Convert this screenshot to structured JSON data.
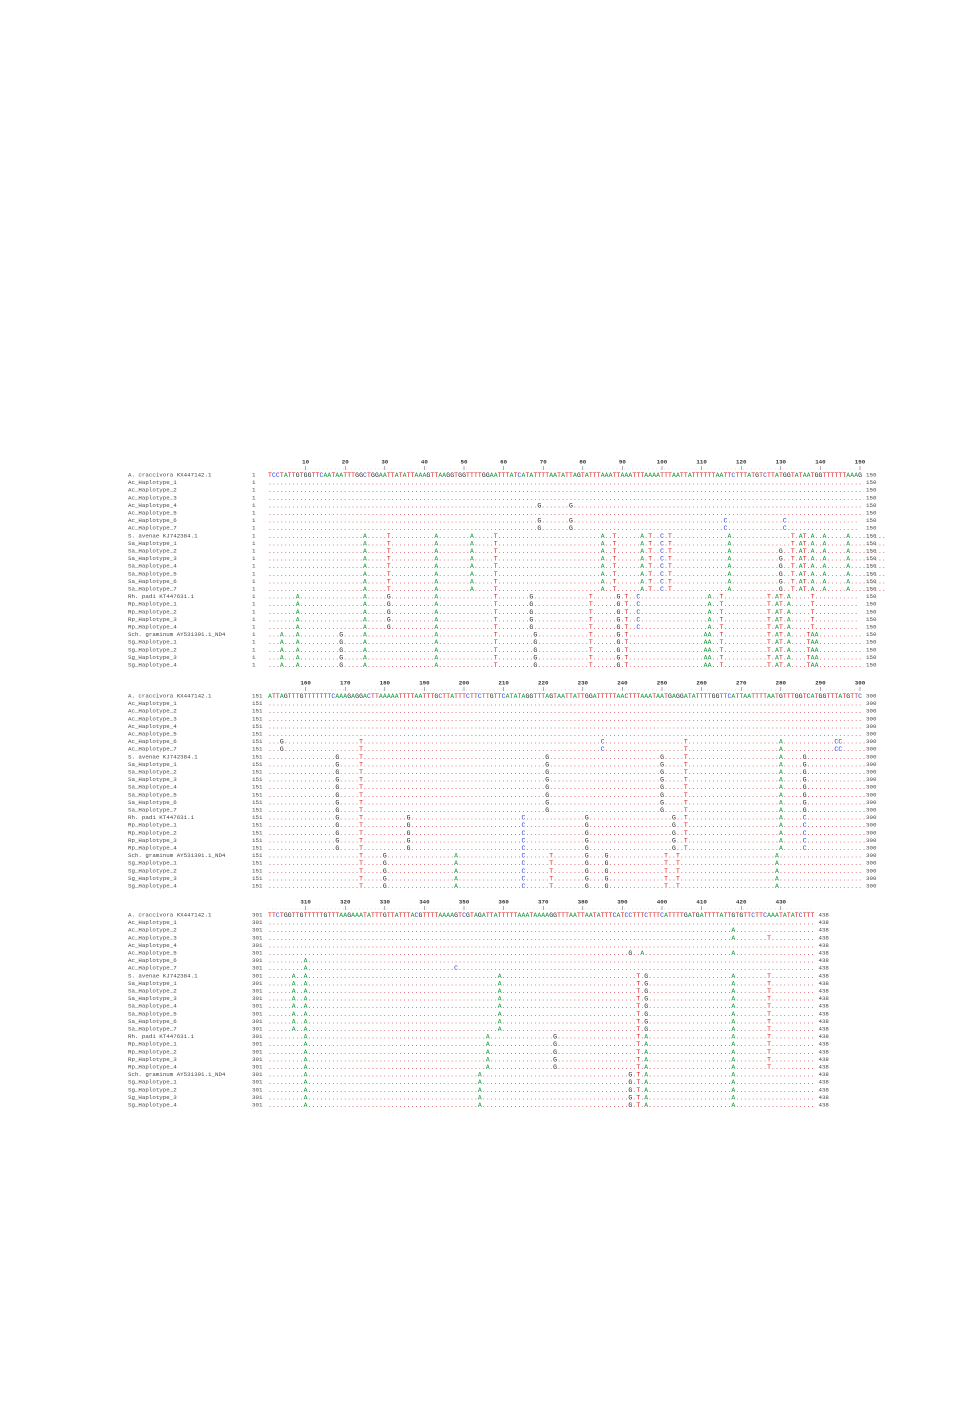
{
  "names": [
    "A. craccivora  KX447142.1",
    "Ac_Haplotype_1",
    "Ac_Haplotype_2",
    "Ac_Haplotype_3",
    "Ac_Haplotype_4",
    "Ac_Haplotype_5",
    "Ac_Haplotype_6",
    "Ac_Haplotype_7",
    "S. avenae  KJ742384.1",
    "Sa_Haplotype_1",
    "Sa_Haplotype_2",
    "Sa_Haplotype_3",
    "Sa_Haplotype_4",
    "Sa_Haplotype_5",
    "Sa_Haplotype_6",
    "Sa_Haplotype_7",
    "Rh. padi  KT447631.1",
    "Rp_Haplotype_1",
    "Rp_Haplotype_2",
    "Rp_Haplotype_3",
    "Rp_Haplotype_4",
    "Sch. graminum  AY531391.1_ND4",
    "Sg_Haplotype_1",
    "Sg_Haplotype_2",
    "Sg_Haplotype_3",
    "Sg_Haplotype_4"
  ],
  "blocks": [
    {
      "start": 1,
      "end": 150,
      "ruler": [
        10,
        20,
        30,
        40,
        50,
        60,
        70,
        80,
        90,
        100,
        110,
        120,
        130,
        140,
        150
      ],
      "rows": [
        "TCCTATTGTGGTTCAATAATTTGGCTGGAATTATATTAAAGTTAAGGTGGTTTTGGAATTTATCATATTTTAATATTAGTATTTAAATTAAATTTAAAATTTAATTATTTTTTAATTCTTTATGTCTTATGGTATAATGGTTTTTTAAAG",
        "......................................................................................................................................................",
        "......................................................................................................................................................",
        "......................................................................................................................................................",
        "....................................................................G.......G.........................................................................",
        "......................................................................................................................................................",
        "....................................................................G.......G......................................C..............C..................",
        "....................................................................G.......G......................................C..............C..................",
        "........................A.....T...........A........A.....T..........................A..T......A.T..C.T..............A...............T.AT.A..A.....A.........",
        "........................A.....T...........A........A.....T..........................A..T......A.T..C.T..............A...............T.AT.A..A.....A.........",
        "........................A.....T...........A........A.....T..........................A..T......A.T..C.T..............A............G..T.AT.A..A.....A.........",
        "........................A.....T...........A........A.....T..........................A..T......A.T..C.T..............A............G..T.AT.A..A.....A.........",
        "........................A.....T...........A........A.....T..........................A..T......A.T..C.T..............A............G..T.AT.A..A.....A.........",
        "........................A.....T...........A........A.....T..........................A..T......A.T..C.T..............A............G..T.AT.A..A.....A.........",
        "........................A.....T...........A........A.....T..........................A..T......A.T..C.T..............A............G..T.AT.A..A.....A.........",
        "........................A.....T...........A........A.....T..........................A..T......A.T..C.T..............A............G..T.AT.A..A.....A.........",
        ".......A................A.....G...........A..............T........G..............T......G.T..C.................A..T...........T.AT.A.....T...........",
        ".......A................A.....G...........A..............T........G..............T......G.T..C.................A..T...........T.AT.A.....T...........",
        ".......A................A.....G...........A..............T........G..............T......G.T..C.................A..T...........T.AT.A.....T...........",
        ".......A................A.....G...........A..............T........G..............T......G.T..C.................A..T...........T.AT.A.....T...........",
        ".......A................A.....G...........A..............T........G..............T......G.T..C.................A..T...........T.AT.A.....T...........",
        "...A...A..........G.....A.................A..............T.........G.............T......G.T...................AA..T...........T.AT.A....TAA...........",
        "...A...A..........G.....A.................A..............T.........G.............T......G.T...................AA..T...........T.AT.A....TAA...........",
        "...A...A..........G.....A.................A..............T.........G.............T......G.T...................AA..T...........T.AT.A....TAA...........",
        "...A...A..........G.....A.................A..............T.........G.............T......G.T...................AA..T...........T.AT.A....TAA...........",
        "...A...A..........G.....A.................A..............T.........G.............T......G.T...................AA..T...........T.AT.A....TAA..........."
      ]
    },
    {
      "start": 151,
      "end": 300,
      "ruler": [
        160,
        170,
        180,
        190,
        200,
        210,
        220,
        230,
        240,
        250,
        260,
        270,
        280,
        290,
        300
      ],
      "rows": [
        "ATTAGTTTGTTTTTTTCAAAGAGGACTTAAAAATTTTAATTTGCTTATTTCTTCTTGTTCATATAGGTTTAGTAATTATTGGATTTTTAACTTTAAATAATGAGGATATTTTGGTTCATTAATTTTAATGTTTGGTCATGGTTTATGTTC",
        "......................................................................................................................................................",
        "......................................................................................................................................................",
        "......................................................................................................................................................",
        "......................................................................................................................................................",
        "......................................................................................................................................................",
        "...G...................T............................................................C....................T.......................A.............CC......",
        "...G...................T............................................................C....................T.......................A.............CC......",
        ".................G.....T..............................................G............................G.....T.......................A.....G...............",
        ".................G.....T..............................................G............................G.....T.......................A.....G...............",
        ".................G.....T..............................................G............................G.....T.......................A.....G...............",
        ".................G.....T..............................................G............................G.....T.......................A.....G...............",
        ".................G.....T..............................................G............................G.....T.......................A.....G...............",
        ".................G.....T..............................................G............................G.....T.......................A.....G...............",
        ".................G.....T..............................................G............................G.....T.......................A.....G...............",
        ".................G.....T..............................................G............................G.....T.......................A.....G...............",
        ".................G.....T...........G............................C...............G.....................G..T.......................A.....C...............",
        ".................G.....T...........G............................C...............G.....................G..T.......................A.....C...............",
        ".................G.....T...........G............................C...............G.....................G..T.......................A.....C...............",
        ".................G.....T...........G............................C...............G.....................G..T.......................A.....C...............",
        ".................G.....T...........G............................C...............G.....................G..T.......................A.....C...............",
        ".......................T.....G.................A................C......T........G....G..............T..T........................A.....................",
        ".......................T.....G.................A................C......T........G....G..............T..T........................A.....................",
        ".......................T.....G.................A................C......T........G....G..............T..T........................A.....................",
        ".......................T.....G.................A................C......T........G....G..............T..T........................A.....................",
        ".......................T.....G.................A................C......T........G....G..............T..T........................A....................."
      ]
    },
    {
      "start": 301,
      "end": 438,
      "ruler": [
        310,
        320,
        330,
        340,
        350,
        360,
        370,
        380,
        390,
        400,
        410,
        420,
        430
      ],
      "rows": [
        "TTCTGGTTGTTTTTGTTTAAGAAATATTTGTTATTTACGTTTTAAAAGTCGTAGATTATTTTTAAATAAAAGGTTTAATTAATATTTCATCCTTTCTTTCATTTTGATGATTTTATTGTGTTCTTCAAATATATCTTT",
        "..........................................................................................................................................",
        ".....................................................................................................................A....................",
        ".....................................................................................................................A........T...........",
        "..........................................................................................................................................",
        "...........................................................................................G..A......................A....................",
        ".........A................................................................................................................................",
        ".........A.....................................C..........................................................................................",
        "......A..A................................................A..................................T.G.....................A........T...........",
        "......A..A................................................A..................................T.G.....................A........T...........",
        "......A..A................................................A..................................T.G.....................A........T...........",
        "......A..A................................................A..................................T.G.....................A........T...........",
        "......A..A................................................A..................................T.G.....................A........T...........",
        "......A..A................................................A..................................T.G.....................A........T...........",
        "......A..A................................................A..................................T.G.....................A........T...........",
        "......A..A................................................A..................................T.G.....................A........T...........",
        ".........A.............................................A................G....................T.A.....................A........T...........",
        ".........A.............................................A................G....................T.A.....................A........T...........",
        ".........A.............................................A................G....................T.A.....................A........T...........",
        ".........A.............................................A................G....................T.A.....................A........T...........",
        ".........A.............................................A................G....................T.A.....................A........T...........",
        ".........A...........................................A.....................................G.T.A.....................A....................",
        ".........A...........................................A.....................................G.T.A.....................A....................",
        ".........A...........................................A.....................................G.T.A.....................A....................",
        ".........A...........................................A.....................................G.T.A.....................A....................",
        ".........A...........................................A.....................................G.T.A.....................A...................."
      ]
    }
  ]
}
